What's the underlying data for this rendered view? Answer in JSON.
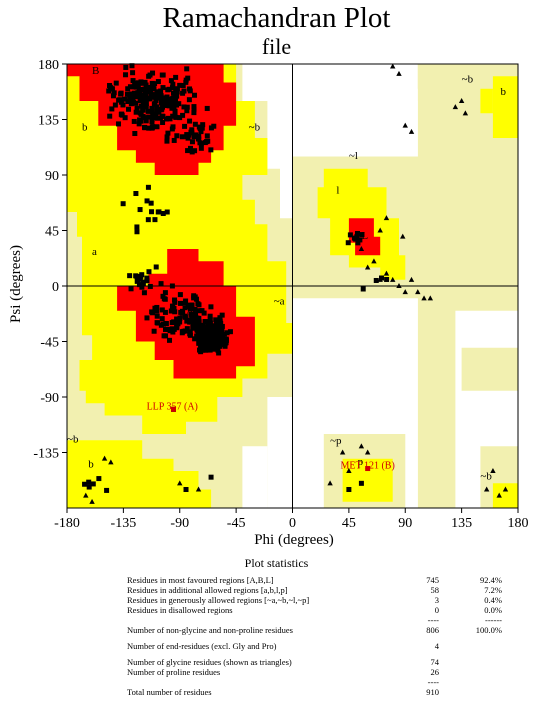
{
  "title": "Ramachandran Plot",
  "subtitle": "file",
  "chart_data": {
    "type": "scatter",
    "xlabel": "Phi (degrees)",
    "ylabel": "Psi (degrees)",
    "xlim": [
      -180,
      180
    ],
    "ylim": [
      -180,
      180
    ],
    "xticks": [
      "-180",
      "-135",
      "-90",
      "-45",
      "0",
      "45",
      "90",
      "135",
      "180"
    ],
    "yticks": [
      "180",
      "135",
      "90",
      "45",
      "0",
      "-45",
      "-90",
      "-135"
    ],
    "region_labels": [
      {
        "text": "B",
        "x": -160,
        "y": 172
      },
      {
        "text": "b",
        "x": -168,
        "y": 126
      },
      {
        "text": "~b",
        "x": -35,
        "y": 126
      },
      {
        "text": "~l",
        "x": 45,
        "y": 103
      },
      {
        "text": "l",
        "x": 35,
        "y": 75
      },
      {
        "text": "L",
        "x": 55,
        "y": 38
      },
      {
        "text": "a",
        "x": -160,
        "y": 25
      },
      {
        "text": "A",
        "x": -85,
        "y": -23
      },
      {
        "text": "~a",
        "x": -15,
        "y": -15
      },
      {
        "text": "~b",
        "x": 135,
        "y": 165
      },
      {
        "text": "b",
        "x": 166,
        "y": 155
      },
      {
        "text": "~p",
        "x": 30,
        "y": -128
      },
      {
        "text": "p",
        "x": 52,
        "y": -145
      },
      {
        "text": "~b",
        "x": -180,
        "y": -127
      },
      {
        "text": "b",
        "x": -163,
        "y": -147
      },
      {
        "text": "~b",
        "x": 150,
        "y": -157
      }
    ],
    "annotations": [
      {
        "text": "LLP 357 (A)",
        "x": -96,
        "y": -100
      },
      {
        "text": "MET 121 (B)",
        "x": 60,
        "y": -148
      }
    ],
    "regions": {
      "most_favoured": "#ff0000",
      "additional_allowed": "#ffff00",
      "generously_allowed": "#f2f0b0",
      "disallowed": "#ffffff"
    },
    "marker_colors": {
      "residue": "#000000",
      "outlier": "#d00000"
    },
    "series": [
      {
        "name": "non-glycine residues",
        "marker": "square",
        "count": 806
      },
      {
        "name": "glycine residues",
        "marker": "triangle",
        "count": 74
      }
    ]
  },
  "stats": {
    "title": "Plot statistics",
    "rows": [
      {
        "label": "Residues in most favoured regions  [A,B,L]",
        "count": "745",
        "pct": "92.4%"
      },
      {
        "label": "Residues in additional allowed regions  [a,b,l,p]",
        "count": "58",
        "pct": "7.2%"
      },
      {
        "label": "Residues in generously allowed regions  [~a,~b,~l,~p]",
        "count": "3",
        "pct": "0.4%"
      },
      {
        "label": "Residues in disallowed regions",
        "count": "0",
        "pct": "0.0%"
      },
      {
        "label": "",
        "count": "----",
        "pct": "------"
      },
      {
        "label": "Number of non-glycine and non-proline residues",
        "count": "806",
        "pct": "100.0%"
      },
      {
        "gap": true
      },
      {
        "label": "Number of end-residues (excl. Gly and Pro)",
        "count": "4",
        "pct": ""
      },
      {
        "gap": true
      },
      {
        "label": "Number of glycine residues (shown as triangles)",
        "count": "74",
        "pct": ""
      },
      {
        "label": "Number of proline residues",
        "count": "26",
        "pct": ""
      },
      {
        "label": "",
        "count": "----",
        "pct": ""
      },
      {
        "label": "Total number of residues",
        "count": "910",
        "pct": ""
      }
    ]
  }
}
